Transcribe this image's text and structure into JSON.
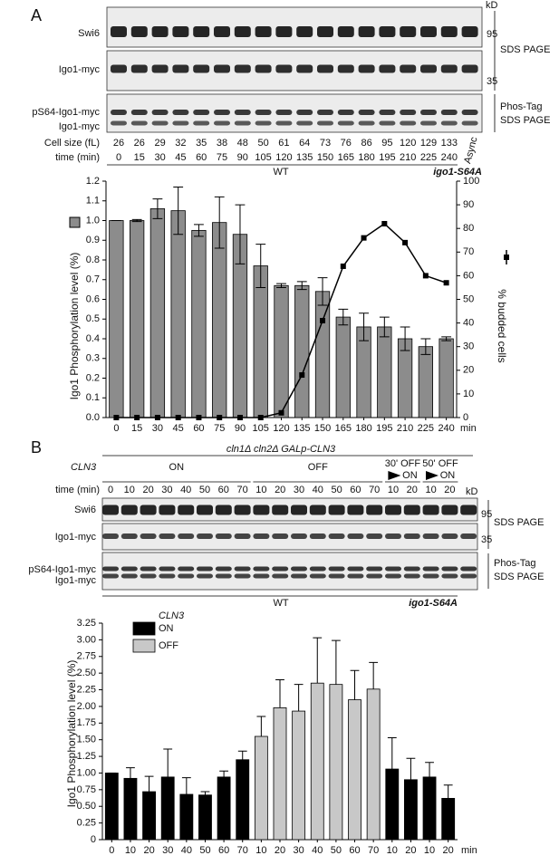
{
  "panel_a": {
    "label": "A",
    "kd_label": "kD",
    "rows": [
      {
        "label": "Swi6",
        "marker": "95"
      },
      {
        "label": "Igo1-myc",
        "marker": "35"
      }
    ],
    "sds_label": "SDS PAGE",
    "phos_rows": [
      "pS64-Igo1-myc",
      "Igo1-myc"
    ],
    "phos_label": [
      "Phos-Tag",
      "SDS PAGE"
    ],
    "cell_size_label": "Cell size (fL)",
    "cell_sizes": [
      26,
      26,
      29,
      32,
      35,
      38,
      48,
      50,
      61,
      64,
      73,
      76,
      86,
      95,
      120,
      129,
      133
    ],
    "async_label": "Async",
    "time_label": "time (min)",
    "times": [
      0,
      15,
      30,
      45,
      60,
      75,
      90,
      105,
      120,
      135,
      150,
      165,
      180,
      195,
      210,
      225,
      240
    ],
    "wt_label": "WT",
    "mutant_label": "igo1-S64A"
  },
  "panel_b": {
    "label": "B",
    "strain": "cln1Δ cln2Δ GALp-CLN3",
    "cln3_label": "CLN3",
    "conditions": [
      {
        "label": "ON"
      },
      {
        "label": "OFF"
      },
      {
        "label": "30' OFF",
        "then": "ON"
      },
      {
        "label": "50' OFF",
        "then": "ON"
      }
    ],
    "time_label": "time (min)",
    "times": [
      0,
      10,
      20,
      30,
      40,
      50,
      60,
      70,
      10,
      20,
      30,
      40,
      50,
      60,
      70,
      10,
      20,
      10,
      20
    ],
    "kd_label": "kD",
    "rows": [
      {
        "label": "Swi6",
        "marker": "95"
      },
      {
        "label": "Igo1-myc",
        "marker": "35"
      }
    ],
    "sds_label": "SDS PAGE",
    "phos_rows": [
      "pS64-Igo1-myc",
      "Igo1-myc"
    ],
    "phos_label": [
      "Phos-Tag",
      "SDS PAGE"
    ],
    "wt_label": "WT",
    "mutant_label": "igo1-S64A"
  },
  "chart_data": [
    {
      "type": "bar",
      "y_label": "Igo1 Phosphorylation level (%)",
      "y2_label": "% budded cells",
      "x_unit": "min",
      "categories": [
        0,
        15,
        30,
        45,
        60,
        75,
        90,
        105,
        120,
        135,
        150,
        165,
        180,
        195,
        210,
        225,
        240
      ],
      "error_bars": "both",
      "series": [
        {
          "type": "bar",
          "color": "#8c8c8c",
          "values": [
            1.0,
            1.0,
            1.06,
            1.05,
            0.95,
            0.99,
            0.93,
            0.77,
            0.67,
            0.67,
            0.64,
            0.51,
            0.46,
            0.46,
            0.4,
            0.36,
            0.4
          ],
          "errors": [
            0,
            0.005,
            0.05,
            0.12,
            0.03,
            0.13,
            0.15,
            0.11,
            0.01,
            0.02,
            0.07,
            0.04,
            0.07,
            0.05,
            0.06,
            0.04,
            0.01
          ]
        },
        {
          "type": "line",
          "axis": "y2",
          "color": "#000000",
          "values": [
            0,
            0,
            0,
            0,
            0,
            0,
            0,
            0,
            2,
            18,
            41,
            64,
            76,
            82,
            74,
            60,
            57
          ]
        }
      ],
      "ylim": [
        0,
        1.2
      ],
      "yticks": [
        {
          "value": 0,
          "label": "0.0"
        },
        0.1,
        0.2,
        0.3,
        0.4,
        0.5,
        0.6,
        0.7,
        0.8,
        0.9,
        {
          "value": 1,
          "label": "1.0"
        },
        1.1,
        1.2
      ],
      "y2lim": [
        0,
        100
      ],
      "y2ticks": [
        0,
        10,
        20,
        30,
        40,
        50,
        60,
        70,
        80,
        90,
        100
      ]
    },
    {
      "type": "bar",
      "y_label": "Igo1 Phosphorylation level (%)",
      "x_unit": "min",
      "legend_title": "CLN3",
      "categories": [
        0,
        10,
        20,
        30,
        40,
        50,
        60,
        70,
        10,
        20,
        30,
        40,
        50,
        60,
        70,
        10,
        20,
        10,
        20
      ],
      "error_bars": "up",
      "series": [
        {
          "name": "ON",
          "color": "#000000",
          "values": [
            1.0,
            0.92,
            0.72,
            0.94,
            0.68,
            0.67,
            0.94,
            1.2,
            null,
            null,
            null,
            null,
            null,
            null,
            null,
            1.06,
            0.9,
            0.94,
            0.62
          ],
          "errors": [
            0,
            0.16,
            0.23,
            0.42,
            0.25,
            0.05,
            0.09,
            0.13,
            null,
            null,
            null,
            null,
            null,
            null,
            null,
            0.47,
            0.32,
            0.22,
            0.2
          ]
        },
        {
          "name": "OFF",
          "color": "#c8c8c8",
          "values": [
            null,
            null,
            null,
            null,
            null,
            null,
            null,
            null,
            1.55,
            1.98,
            1.93,
            2.35,
            2.33,
            2.1,
            2.26,
            null,
            null,
            null,
            null
          ],
          "errors": [
            null,
            null,
            null,
            null,
            null,
            null,
            null,
            null,
            0.3,
            0.42,
            0.4,
            0.68,
            0.66,
            0.44,
            0.4,
            null,
            null,
            null,
            null
          ]
        }
      ],
      "ylim": [
        0,
        3.25
      ],
      "yticks": [
        0,
        0.25,
        {
          "value": 0.5,
          "label": "0.50"
        },
        0.75,
        {
          "value": 1,
          "label": "1.00"
        },
        1.25,
        {
          "value": 1.5,
          "label": "1.50"
        },
        1.75,
        {
          "value": 2,
          "label": "2.00"
        },
        2.25,
        {
          "value": 2.5,
          "label": "2.50"
        },
        2.75,
        {
          "value": 3,
          "label": "3.00"
        },
        3.25
      ]
    }
  ]
}
